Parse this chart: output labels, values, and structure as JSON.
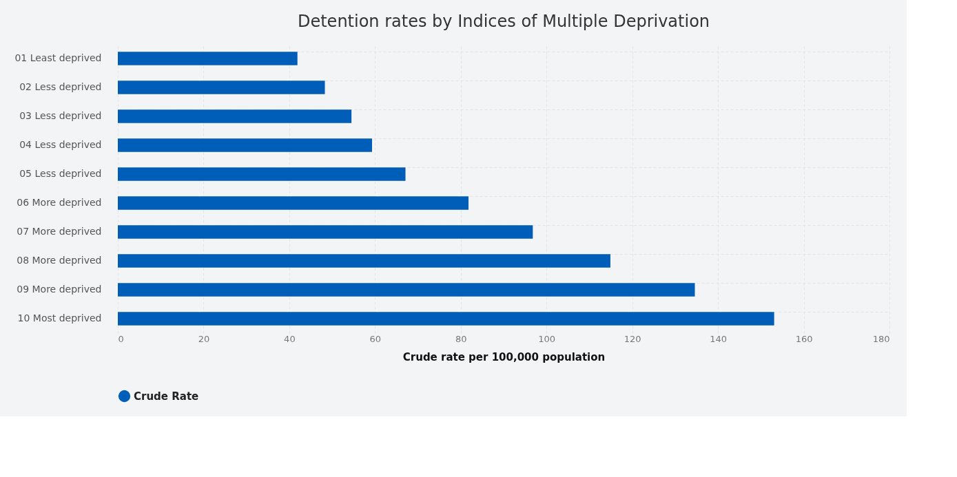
{
  "chart_data": {
    "type": "bar",
    "orientation": "horizontal",
    "title": "Detention rates by Indices of Multiple Deprivation",
    "xlabel": "Crude rate per 100,000 population",
    "categories": [
      "01 Least deprived",
      "02 Less deprived",
      "03 Less deprived",
      "04 Less deprived",
      "05 Less deprived",
      "06 More deprived",
      "07 More deprived",
      "08 More deprived",
      "09 More deprived",
      "10 Most deprived"
    ],
    "series": [
      {
        "name": "Crude Rate",
        "color": "#005eb8",
        "values": [
          41.9,
          48.3,
          54.5,
          59.3,
          67.1,
          81.8,
          96.8,
          114.9,
          134.6,
          153.1
        ]
      }
    ],
    "xlim": [
      0,
      180
    ],
    "xticks": [
      0,
      20,
      40,
      60,
      80,
      100,
      120,
      140,
      160,
      180
    ],
    "grid": true,
    "legend": "bottom",
    "marker": "circle"
  }
}
